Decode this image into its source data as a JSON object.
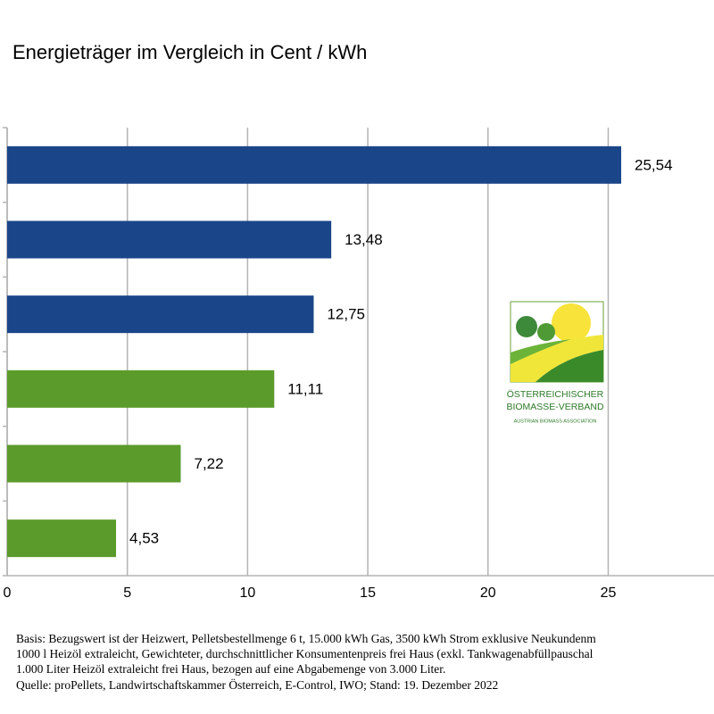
{
  "chart_data": {
    "type": "barh",
    "title": "Energieträger im Vergleich in Cent / kWh",
    "categories": [
      null,
      null,
      null,
      null,
      null,
      null
    ],
    "values": [
      25.54,
      13.48,
      12.75,
      11.11,
      7.22,
      4.53
    ],
    "value_labels": [
      "25,54",
      "13,48",
      "12,75",
      "11,11",
      "7,22",
      "4,53"
    ],
    "colors": [
      "#1a4689",
      "#1a4689",
      "#1a4689",
      "#5b9b2b",
      "#5b9b2b",
      "#5b9b2b"
    ],
    "xlim": [
      0,
      29.4
    ],
    "xticks": [
      0,
      5,
      10,
      15,
      20,
      25
    ],
    "grid": true,
    "annotations": [
      "ÖSTERREICHISCHER",
      "BIOMASSE-VERBAND",
      "AUSTRIAN BIOMASS ASSOCIATION"
    ],
    "footnotes": [
      "Basis: Bezugswert ist der Heizwert, Pelletsbestellmenge 6 t, 15.000 kWh Gas, 3500 kWh Strom exklusive Neukundenm",
      "1000 l Heizöl extraleicht, Gewichteter, durchschnittlicher Konsumentenpreis frei Haus (exkl. Tankwagenabfüllpauschal",
      "1.000 Liter Heizöl extraleicht frei Haus, bezogen auf eine Abgabemenge von 3.000 Liter.",
      "Quelle: proPellets, Landwirtschaftskammer Österreich, E-Control, IWO; Stand: 19. Dezember 2022"
    ]
  }
}
